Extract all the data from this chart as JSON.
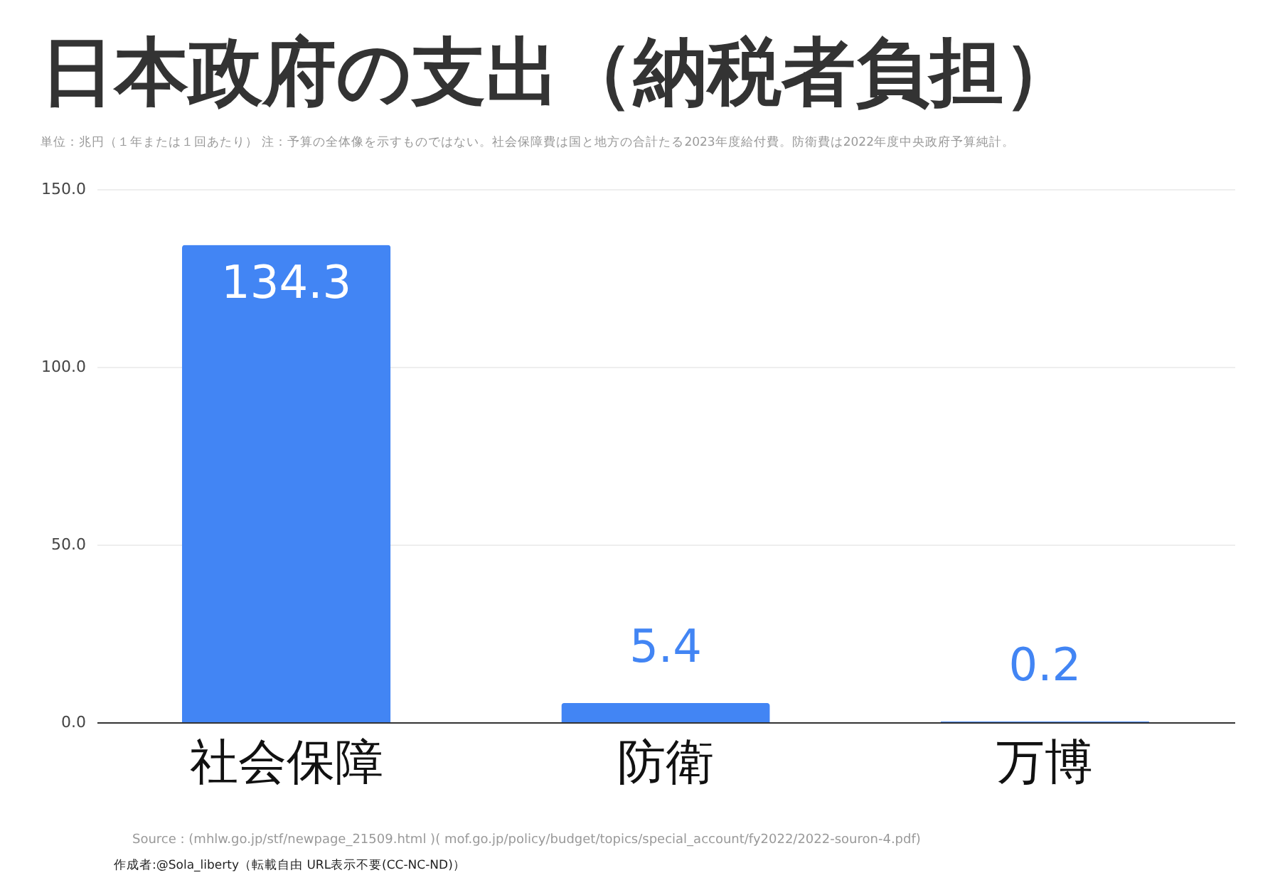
{
  "chart_data": {
    "type": "bar",
    "title": "日本政府の支出（納税者負担）",
    "subtitle": "単位：兆円（１年または１回あたり） 注：予算の全体像を示すものではない。社会保障費は国と地方の合計たる2023年度給付費。防衛費は2022年度中央政府予算純計。",
    "categories": [
      "社会保障",
      "防衛",
      "万博"
    ],
    "values": [
      134.3,
      5.4,
      0.2
    ],
    "color": "#4285f4",
    "ylim": [
      0,
      150
    ],
    "yticks": [
      {
        "value": 0,
        "label": "0.0"
      },
      {
        "value": 50,
        "label": "50.0"
      },
      {
        "value": 100,
        "label": "100.0"
      },
      {
        "value": 150,
        "label": "150.0"
      }
    ],
    "grid": "y",
    "data_labels": true,
    "annotations": [
      "Source : (mhlw.go.jp/stf/newpage_21509.html )( mof.go.jp/policy/budget/topics/special_account/fy2022/2022-souron-4.pdf)",
      "作成者:@Sola_liberty（転載自由  URL表示不要(CC-NC-ND)）"
    ]
  }
}
